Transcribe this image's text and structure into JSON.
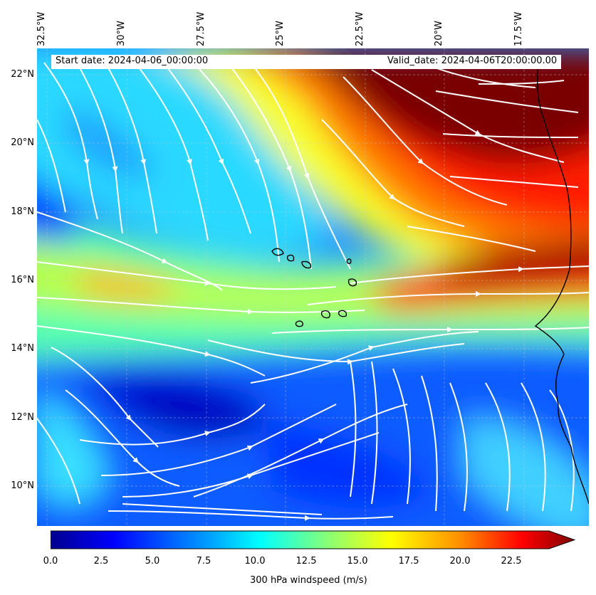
{
  "map": {
    "top_lon_labels": [
      "32.5°W",
      "30°W",
      "27.5°W",
      "25°W",
      "22.5°W",
      "20°W",
      "17.5°W"
    ],
    "left_lat_labels": [
      "22°N",
      "20°N",
      "18°N",
      "16°N",
      "14°N",
      "12°N",
      "10°N"
    ],
    "info": {
      "start_date": "Start date: 2024-04-06_00:00:00",
      "valid_date": "Valid_date: 2024-04-06T20:00:00.00"
    },
    "layers": [
      "filled-contour-windspeed",
      "streamlines",
      "coastlines",
      "gridlines"
    ],
    "colormap": "jet"
  },
  "colorbar": {
    "label": "300 hPa windspeed (m/s)",
    "ticks": [
      "0.0",
      "2.5",
      "5.0",
      "7.5",
      "10.0",
      "12.5",
      "15.0",
      "17.5",
      "20.0",
      "22.5"
    ],
    "extend": "max",
    "colors": [
      "#00008f",
      "#0000ff",
      "#00b0ff",
      "#00ffff",
      "#7fff7f",
      "#ffff00",
      "#ff9000",
      "#ff0000",
      "#800000"
    ]
  }
}
